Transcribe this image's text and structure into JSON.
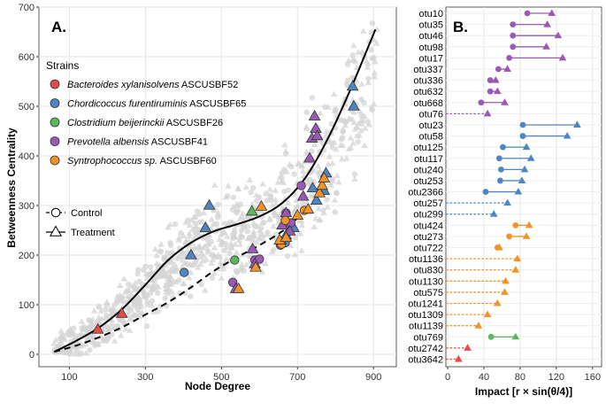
{
  "chart_data": [
    {
      "type": "scatter",
      "panel_label": "A.",
      "xlabel": "Node Degree",
      "ylabel": "Betweenness Centrality",
      "xlim": [
        20,
        960
      ],
      "ylim": [
        -25,
        700
      ],
      "xticks": [
        100,
        300,
        500,
        700,
        900
      ],
      "yticks": [
        0,
        100,
        200,
        300,
        400,
        500,
        600,
        700
      ],
      "grid": true,
      "legend_title": "Strains",
      "legend": [
        {
          "italic": "Bacteroides xylanisolvens",
          "rest": " ASCUSBF52",
          "color": "#e34a4a"
        },
        {
          "italic": "Chordicoccus furentiruminis",
          "rest": " ASCUSBF65",
          "color": "#4f86c2"
        },
        {
          "italic": "Clostridium beijerinckii",
          "rest": " ASCUSBF26",
          "color": "#5cb85c"
        },
        {
          "italic": "Prevotella albensis",
          "rest": " ASCUSBF41",
          "color": "#9b59b6"
        },
        {
          "italic": "Syntrophococcus sp.",
          "rest": " ASCUSBF60",
          "color": "#f0932b"
        }
      ],
      "shape_legend": [
        {
          "label": "Control",
          "shape": "circle",
          "line": "dashed"
        },
        {
          "label": "Treatment",
          "shape": "triangle",
          "line": "solid"
        }
      ],
      "fit_treatment": {
        "x": [
          60,
          120,
          180,
          240,
          300,
          360,
          420,
          480,
          540,
          600,
          660,
          720,
          780,
          840,
          905
        ],
        "y": [
          5,
          28,
          55,
          92,
          140,
          190,
          225,
          248,
          262,
          278,
          305,
          355,
          435,
          535,
          655
        ]
      },
      "fit_control": {
        "x": [
          60,
          120,
          180,
          240,
          300,
          360,
          420,
          480,
          540,
          600,
          660,
          700,
          720
        ],
        "y": [
          5,
          18,
          35,
          55,
          80,
          105,
          135,
          168,
          195,
          220,
          248,
          275,
          300
        ]
      },
      "series": [
        {
          "name": "Bacteroides xylanisolvens ASCUSBF52",
          "color": "#e34a4a",
          "treatment": [
            [
              175,
              50
            ],
            [
              238,
              82
            ]
          ],
          "control": []
        },
        {
          "name": "Chordicoccus furentiruminis ASCUSBF65",
          "color": "#4f86c2",
          "treatment": [
            [
              420,
              200
            ],
            [
              458,
              255
            ],
            [
              468,
              300
            ],
            [
              670,
              240
            ],
            [
              690,
              255
            ],
            [
              740,
              335
            ],
            [
              750,
              310
            ],
            [
              770,
              330
            ],
            [
              775,
              365
            ],
            [
              845,
              540
            ],
            [
              848,
              500
            ]
          ],
          "control": [
            [
              402,
              165
            ],
            [
              668,
              225
            ]
          ]
        },
        {
          "name": "Clostridium beijerinckii ASCUSBF26",
          "color": "#5cb85c",
          "treatment": [
            [
              580,
              288
            ]
          ],
          "control": [
            [
              535,
              190
            ]
          ]
        },
        {
          "name": "Prevotella albensis ASCUSBF41",
          "color": "#9b59b6",
          "treatment": [
            [
              538,
              132
            ],
            [
              582,
              212
            ],
            [
              588,
              182
            ],
            [
              660,
              260
            ],
            [
              670,
              285
            ],
            [
              680,
              248
            ],
            [
              715,
              318
            ],
            [
              732,
              395
            ],
            [
              738,
              435
            ],
            [
              745,
              480
            ],
            [
              748,
              455
            ],
            [
              752,
              440
            ]
          ],
          "control": [
            [
              530,
              145
            ],
            [
              588,
              190
            ],
            [
              600,
              192
            ],
            [
              655,
              220
            ],
            [
              668,
              262
            ],
            [
              670,
              285
            ],
            [
              683,
              265
            ],
            [
              710,
              340
            ]
          ]
        },
        {
          "name": "Syntrophococcus sp. ASCUSBF60",
          "color": "#f0932b",
          "treatment": [
            [
              545,
              132
            ],
            [
              590,
              175
            ],
            [
              605,
              298
            ],
            [
              653,
              230
            ],
            [
              670,
              235
            ],
            [
              700,
              280
            ],
            [
              728,
              292
            ],
            [
              758,
              325
            ],
            [
              765,
              340
            ],
            [
              770,
              355
            ]
          ],
          "control": [
            [
              658,
              222
            ],
            [
              668,
              270
            ],
            [
              718,
              290
            ]
          ]
        }
      ]
    },
    {
      "type": "dumbbell",
      "panel_label": "B.",
      "xlabel": "Impact [r × sin(θ/4)]",
      "xlim": [
        -2,
        170
      ],
      "xticks": [
        0,
        40,
        80,
        120,
        160
      ],
      "grid": true,
      "rows": [
        {
          "label": "otu10",
          "color": "#9b59b6",
          "control": 88,
          "treatment": 115,
          "dotted": false
        },
        {
          "label": "otu35",
          "color": "#9b59b6",
          "control": 72,
          "treatment": 110,
          "dotted": false
        },
        {
          "label": "otu46",
          "color": "#9b59b6",
          "control": 72,
          "treatment": 122,
          "dotted": false
        },
        {
          "label": "otu98",
          "color": "#9b59b6",
          "control": 72,
          "treatment": 109,
          "dotted": false
        },
        {
          "label": "otu17",
          "color": "#9b59b6",
          "control": 68,
          "treatment": 127,
          "dotted": false
        },
        {
          "label": "otu337",
          "color": "#9b59b6",
          "control": 56,
          "treatment": 66,
          "dotted": false
        },
        {
          "label": "otu336",
          "color": "#9b59b6",
          "control": 47,
          "treatment": 53,
          "dotted": false
        },
        {
          "label": "otu632",
          "color": "#9b59b6",
          "control": 47,
          "treatment": 55,
          "dotted": false
        },
        {
          "label": "otu668",
          "color": "#9b59b6",
          "control": 37,
          "treatment": 63,
          "dotted": false
        },
        {
          "label": "otu76",
          "color": "#9b59b6",
          "control": null,
          "treatment": 44,
          "dotted": true
        },
        {
          "label": "otu23",
          "color": "#4f86c2",
          "control": 83,
          "treatment": 143,
          "dotted": false
        },
        {
          "label": "otu58",
          "color": "#4f86c2",
          "control": 83,
          "treatment": 132,
          "dotted": false
        },
        {
          "label": "otu125",
          "color": "#4f86c2",
          "control": 61,
          "treatment": 87,
          "dotted": false
        },
        {
          "label": "otu117",
          "color": "#4f86c2",
          "control": 57,
          "treatment": 92,
          "dotted": false
        },
        {
          "label": "otu240",
          "color": "#4f86c2",
          "control": 59,
          "treatment": 85,
          "dotted": false
        },
        {
          "label": "otu253",
          "color": "#4f86c2",
          "control": 58,
          "treatment": 82,
          "dotted": false
        },
        {
          "label": "otu2366",
          "color": "#4f86c2",
          "control": 42,
          "treatment": 78,
          "dotted": false
        },
        {
          "label": "otu257",
          "color": "#4f86c2",
          "control": null,
          "treatment": 66,
          "dotted": true
        },
        {
          "label": "otu299",
          "color": "#4f86c2",
          "control": null,
          "treatment": 51,
          "dotted": true
        },
        {
          "label": "otu424",
          "color": "#f0932b",
          "control": 75,
          "treatment": 90,
          "dotted": false
        },
        {
          "label": "otu273",
          "color": "#f0932b",
          "control": 68,
          "treatment": 87,
          "dotted": false
        },
        {
          "label": "otu722",
          "color": "#f0932b",
          "control": 55,
          "treatment": 57,
          "dotted": false
        },
        {
          "label": "otu1136",
          "color": "#f0932b",
          "control": null,
          "treatment": 77,
          "dotted": true
        },
        {
          "label": "otu830",
          "color": "#f0932b",
          "control": null,
          "treatment": 75,
          "dotted": true
        },
        {
          "label": "otu1130",
          "color": "#f0932b",
          "control": null,
          "treatment": 64,
          "dotted": true
        },
        {
          "label": "otu575",
          "color": "#f0932b",
          "control": null,
          "treatment": 63,
          "dotted": true
        },
        {
          "label": "otu1241",
          "color": "#f0932b",
          "control": null,
          "treatment": 55,
          "dotted": true
        },
        {
          "label": "otu1309",
          "color": "#f0932b",
          "control": null,
          "treatment": 44,
          "dotted": true
        },
        {
          "label": "otu1139",
          "color": "#f0932b",
          "control": null,
          "treatment": 34,
          "dotted": true
        },
        {
          "label": "otu769",
          "color": "#5cb85c",
          "control": 48,
          "treatment": 75,
          "dotted": false
        },
        {
          "label": "otu2742",
          "color": "#e34a4a",
          "control": null,
          "treatment": 22,
          "dotted": true
        },
        {
          "label": "otu3642",
          "color": "#e34a4a",
          "control": null,
          "treatment": 12,
          "dotted": true
        }
      ]
    }
  ]
}
